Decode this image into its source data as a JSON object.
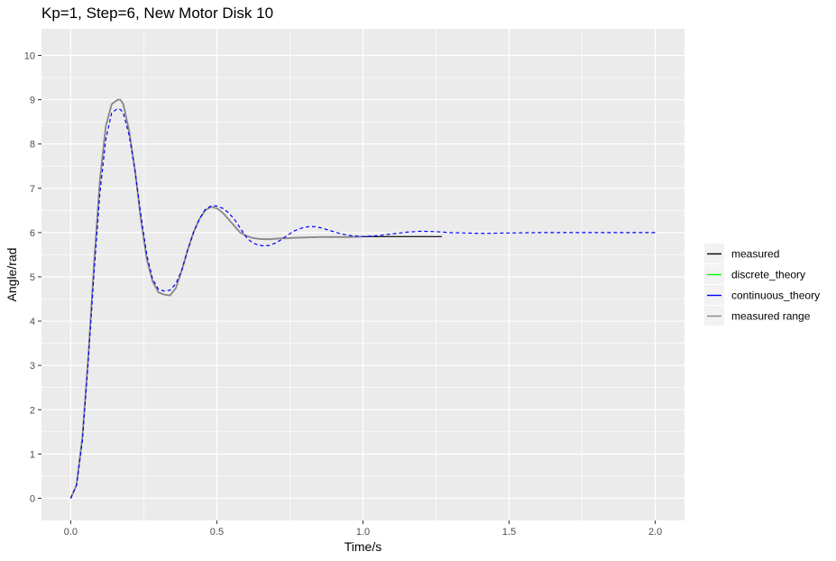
{
  "chart_data": {
    "type": "line",
    "title": "Kp=1, Step=6, New Motor Disk 10",
    "xlabel": "Time/s",
    "ylabel": "Angle/rad",
    "xlim": [
      -0.1,
      2.1
    ],
    "ylim": [
      -0.5,
      10.6
    ],
    "x_ticks": [
      0.0,
      0.5,
      1.0,
      1.5,
      2.0
    ],
    "x_tick_labels": [
      "0.0",
      "0.5",
      "1.0",
      "1.5",
      "2.0"
    ],
    "y_ticks": [
      0,
      1,
      2,
      3,
      4,
      5,
      6,
      7,
      8,
      9,
      10
    ],
    "y_tick_labels": [
      "0",
      "1",
      "2",
      "3",
      "4",
      "5",
      "6",
      "7",
      "8",
      "9",
      "10"
    ],
    "grid": true,
    "legend_position": "right",
    "series": [
      {
        "name": "measured",
        "color": "#000000",
        "dash": "solid",
        "x": [
          0,
          0.02,
          0.04,
          0.06,
          0.08,
          0.1,
          0.12,
          0.14,
          0.16,
          0.17,
          0.18,
          0.2,
          0.22,
          0.24,
          0.26,
          0.28,
          0.3,
          0.32,
          0.34,
          0.36,
          0.38,
          0.4,
          0.42,
          0.44,
          0.46,
          0.48,
          0.5,
          0.52,
          0.54,
          0.56,
          0.58,
          0.6,
          0.62,
          0.64,
          0.66,
          0.68,
          0.7,
          0.72,
          0.74,
          0.76,
          0.8,
          0.85,
          0.9,
          0.95,
          1.0,
          1.05,
          1.1,
          1.15,
          1.2,
          1.27
        ],
        "y": [
          0,
          0.3,
          1.4,
          3.2,
          5.3,
          7.2,
          8.4,
          8.9,
          9.0,
          9.0,
          8.9,
          8.3,
          7.4,
          6.3,
          5.4,
          4.9,
          4.65,
          4.6,
          4.58,
          4.75,
          5.15,
          5.6,
          6.0,
          6.3,
          6.5,
          6.58,
          6.55,
          6.45,
          6.3,
          6.15,
          6.0,
          5.93,
          5.88,
          5.86,
          5.85,
          5.85,
          5.86,
          5.87,
          5.87,
          5.88,
          5.89,
          5.9,
          5.9,
          5.9,
          5.91,
          5.91,
          5.91,
          5.91,
          5.91,
          5.91
        ]
      },
      {
        "name": "discrete_theory",
        "color": "#00ff00",
        "dash": "solid",
        "x": [],
        "y": []
      },
      {
        "name": "continuous_theory",
        "color": "#0000ff",
        "dash": "dashed",
        "x": [
          0,
          0.02,
          0.04,
          0.06,
          0.08,
          0.1,
          0.12,
          0.14,
          0.16,
          0.17,
          0.18,
          0.2,
          0.22,
          0.24,
          0.26,
          0.28,
          0.3,
          0.32,
          0.34,
          0.36,
          0.38,
          0.4,
          0.42,
          0.44,
          0.46,
          0.48,
          0.5,
          0.52,
          0.54,
          0.56,
          0.58,
          0.6,
          0.62,
          0.64,
          0.66,
          0.68,
          0.7,
          0.72,
          0.74,
          0.76,
          0.78,
          0.8,
          0.82,
          0.84,
          0.86,
          0.88,
          0.9,
          0.92,
          0.94,
          0.96,
          1.0,
          1.05,
          1.1,
          1.15,
          1.2,
          1.25,
          1.3,
          1.35,
          1.4,
          1.5,
          1.6,
          1.7,
          1.8,
          1.9,
          2.0
        ],
        "y": [
          0,
          0.3,
          1.3,
          3.1,
          5.1,
          6.9,
          8.1,
          8.7,
          8.8,
          8.78,
          8.7,
          8.2,
          7.4,
          6.4,
          5.5,
          4.95,
          4.72,
          4.68,
          4.7,
          4.85,
          5.15,
          5.6,
          6.0,
          6.3,
          6.52,
          6.6,
          6.6,
          6.55,
          6.45,
          6.3,
          6.1,
          5.9,
          5.78,
          5.72,
          5.7,
          5.71,
          5.76,
          5.84,
          5.93,
          6.02,
          6.08,
          6.12,
          6.14,
          6.13,
          6.1,
          6.06,
          6.02,
          5.98,
          5.95,
          5.93,
          5.91,
          5.93,
          5.97,
          6.01,
          6.03,
          6.02,
          6.0,
          5.99,
          5.98,
          5.99,
          6.0,
          6.0,
          6.0,
          6.0,
          6.0
        ]
      },
      {
        "name": "measured range",
        "color": "#888888",
        "dash": "solid",
        "x": [
          0,
          0.02,
          0.04,
          0.06,
          0.08,
          0.1,
          0.12,
          0.14,
          0.16,
          0.17,
          0.18,
          0.2,
          0.22,
          0.24,
          0.26,
          0.28,
          0.3,
          0.32,
          0.34,
          0.36,
          0.38,
          0.4,
          0.42,
          0.44,
          0.46,
          0.48,
          0.5,
          0.52,
          0.54,
          0.56,
          0.58,
          0.6,
          0.62,
          0.64,
          0.66,
          0.68,
          0.7,
          0.72,
          0.74,
          0.76,
          0.8,
          0.85,
          0.9,
          0.95,
          1.0
        ],
        "y": [
          0,
          0.3,
          1.4,
          3.2,
          5.3,
          7.2,
          8.4,
          8.9,
          9.0,
          9.0,
          8.9,
          8.3,
          7.4,
          6.3,
          5.4,
          4.9,
          4.65,
          4.6,
          4.58,
          4.75,
          5.15,
          5.6,
          6.0,
          6.3,
          6.5,
          6.58,
          6.55,
          6.45,
          6.3,
          6.15,
          6.0,
          5.93,
          5.88,
          5.86,
          5.85,
          5.85,
          5.86,
          5.87,
          5.87,
          5.88,
          5.89,
          5.9,
          5.9,
          5.9,
          5.91
        ]
      }
    ]
  }
}
